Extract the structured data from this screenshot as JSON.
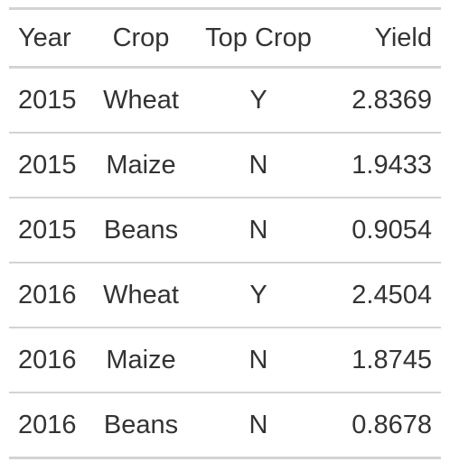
{
  "table": {
    "headers": {
      "year": "Year",
      "crop": "Crop",
      "top_crop": "Top Crop",
      "yield": "Yield"
    },
    "rows": [
      {
        "year": "2015",
        "crop": "Wheat",
        "top_crop": "Y",
        "yield": "2.8369"
      },
      {
        "year": "2015",
        "crop": "Maize",
        "top_crop": "N",
        "yield": "1.9433"
      },
      {
        "year": "2015",
        "crop": "Beans",
        "top_crop": "N",
        "yield": "0.9054"
      },
      {
        "year": "2016",
        "crop": "Wheat",
        "top_crop": "Y",
        "yield": "2.4504"
      },
      {
        "year": "2016",
        "crop": "Maize",
        "top_crop": "N",
        "yield": "1.8745"
      },
      {
        "year": "2016",
        "crop": "Beans",
        "top_crop": "N",
        "yield": "0.8678"
      }
    ]
  }
}
